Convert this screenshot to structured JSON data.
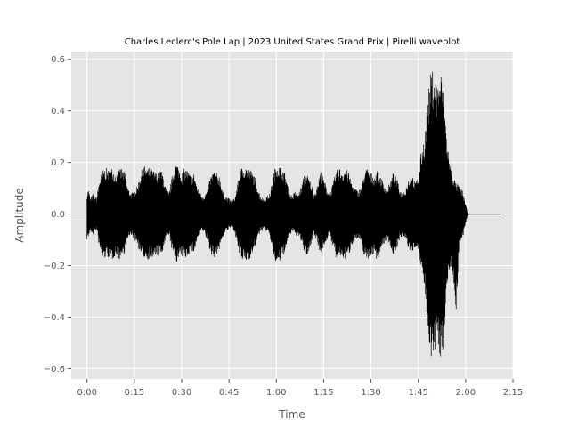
{
  "chart_data": {
    "type": "line",
    "title": "Charles Leclerc's Pole Lap | 2023 United States Grand Prix | Pirelli waveplot",
    "xlabel": "Time",
    "ylabel": "Amplitude",
    "xlim": [
      -5,
      135
    ],
    "ylim": [
      -0.64,
      0.63
    ],
    "x_unit": "seconds",
    "x_ticks": [
      0,
      15,
      30,
      45,
      60,
      75,
      90,
      105,
      120,
      135
    ],
    "x_tick_labels": [
      "0:00",
      "0:15",
      "0:30",
      "0:45",
      "1:00",
      "1:15",
      "1:30",
      "1:45",
      "2:00",
      "2:15"
    ],
    "y_ticks": [
      -0.6,
      -0.4,
      -0.2,
      0.0,
      0.2,
      0.4,
      0.6
    ],
    "y_tick_labels": [
      "−0.6",
      "−0.4",
      "−0.2",
      "0.0",
      "0.2",
      "0.4",
      "0.6"
    ],
    "grid": true,
    "background": "#e5e5e5",
    "grid_color": "#ffffff",
    "series": [
      {
        "color": "#000000",
        "envelope": {
          "time": [
            0,
            0.5,
            1,
            2,
            3,
            4,
            5,
            6,
            7,
            8,
            9,
            10,
            11,
            12,
            13,
            14,
            15,
            16,
            17,
            18,
            19,
            20,
            21,
            22,
            23,
            24,
            25,
            26,
            27,
            28,
            29,
            30,
            31,
            32,
            33,
            34,
            35,
            36,
            37,
            38,
            39,
            40,
            41,
            42,
            43,
            44,
            45,
            46,
            47,
            48,
            49,
            50,
            51,
            52,
            53,
            54,
            55,
            56,
            57,
            58,
            59,
            60,
            61,
            62,
            63,
            64,
            65,
            66,
            67,
            68,
            69,
            70,
            71,
            72,
            73,
            74,
            75,
            76,
            77,
            78,
            79,
            80,
            81,
            82,
            83,
            84,
            85,
            86,
            87,
            88,
            89,
            90,
            91,
            92,
            93,
            94,
            95,
            96,
            97,
            98,
            99,
            100,
            101,
            102,
            103,
            104,
            105,
            106,
            107,
            108,
            109,
            110,
            111,
            112,
            113,
            114,
            115,
            116,
            117,
            118,
            119,
            120,
            120.5,
            121,
            131
          ],
          "max": [
            0.08,
            0.1,
            0.06,
            0.08,
            0.06,
            0.14,
            0.17,
            0.18,
            0.17,
            0.18,
            0.16,
            0.17,
            0.18,
            0.16,
            0.1,
            0.08,
            0.09,
            0.11,
            0.16,
            0.19,
            0.18,
            0.18,
            0.17,
            0.16,
            0.18,
            0.16,
            0.1,
            0.08,
            0.15,
            0.2,
            0.19,
            0.16,
            0.18,
            0.17,
            0.15,
            0.16,
            0.1,
            0.08,
            0.07,
            0.09,
            0.14,
            0.17,
            0.16,
            0.15,
            0.09,
            0.07,
            0.06,
            0.05,
            0.07,
            0.14,
            0.18,
            0.19,
            0.18,
            0.17,
            0.15,
            0.11,
            0.07,
            0.06,
            0.07,
            0.08,
            0.15,
            0.2,
            0.19,
            0.18,
            0.15,
            0.09,
            0.07,
            0.09,
            0.08,
            0.11,
            0.16,
            0.15,
            0.12,
            0.08,
            0.11,
            0.17,
            0.14,
            0.1,
            0.08,
            0.12,
            0.17,
            0.18,
            0.17,
            0.18,
            0.16,
            0.12,
            0.1,
            0.09,
            0.11,
            0.17,
            0.18,
            0.16,
            0.15,
            0.17,
            0.15,
            0.12,
            0.1,
            0.12,
            0.16,
            0.15,
            0.1,
            0.08,
            0.1,
            0.14,
            0.16,
            0.12,
            0.15,
            0.25,
            0.3,
            0.45,
            0.55,
            0.57,
            0.5,
            0.56,
            0.5,
            0.3,
            0.2,
            0.15,
            0.12,
            0.11,
            0.09,
            0.04,
            0.01,
            0.0,
            0.0
          ],
          "min": [
            -0.1,
            -0.09,
            -0.07,
            -0.08,
            -0.06,
            -0.14,
            -0.18,
            -0.17,
            -0.17,
            -0.18,
            -0.16,
            -0.18,
            -0.17,
            -0.15,
            -0.1,
            -0.08,
            -0.1,
            -0.12,
            -0.16,
            -0.17,
            -0.18,
            -0.17,
            -0.18,
            -0.16,
            -0.17,
            -0.15,
            -0.1,
            -0.08,
            -0.15,
            -0.19,
            -0.18,
            -0.17,
            -0.18,
            -0.16,
            -0.15,
            -0.15,
            -0.1,
            -0.07,
            -0.07,
            -0.1,
            -0.15,
            -0.17,
            -0.16,
            -0.14,
            -0.09,
            -0.07,
            -0.06,
            -0.05,
            -0.08,
            -0.15,
            -0.18,
            -0.19,
            -0.18,
            -0.17,
            -0.14,
            -0.1,
            -0.07,
            -0.06,
            -0.07,
            -0.09,
            -0.16,
            -0.2,
            -0.19,
            -0.17,
            -0.14,
            -0.09,
            -0.07,
            -0.08,
            -0.09,
            -0.11,
            -0.16,
            -0.16,
            -0.12,
            -0.08,
            -0.11,
            -0.16,
            -0.13,
            -0.1,
            -0.09,
            -0.13,
            -0.18,
            -0.17,
            -0.17,
            -0.18,
            -0.16,
            -0.12,
            -0.1,
            -0.1,
            -0.12,
            -0.17,
            -0.18,
            -0.16,
            -0.16,
            -0.18,
            -0.15,
            -0.12,
            -0.1,
            -0.12,
            -0.16,
            -0.14,
            -0.1,
            -0.09,
            -0.1,
            -0.14,
            -0.16,
            -0.13,
            -0.16,
            -0.22,
            -0.3,
            -0.45,
            -0.55,
            -0.58,
            -0.5,
            -0.56,
            -0.52,
            -0.3,
            -0.2,
            -0.25,
            -0.38,
            -0.12,
            -0.1,
            -0.04,
            -0.01,
            0.0,
            0.0
          ]
        }
      }
    ]
  }
}
